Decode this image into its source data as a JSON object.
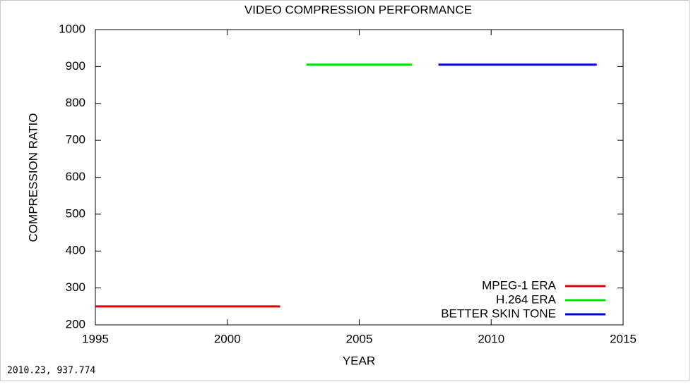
{
  "chart_data": {
    "type": "line",
    "title": "VIDEO COMPRESSION PERFORMANCE",
    "x_label": "YEAR",
    "y_label": "COMPRESSION RATIO",
    "xlim": [
      1995,
      2015
    ],
    "xticks": [
      1995,
      2000,
      2005,
      2010,
      2015
    ],
    "ylim": [
      200,
      1000
    ],
    "yticks": [
      200,
      300,
      400,
      500,
      600,
      700,
      800,
      900,
      1000
    ],
    "legend": "bottom-right",
    "grid": false,
    "series": [
      {
        "name": "MPEG-1 ERA",
        "color": "#e00000",
        "x": [
          1995,
          2002
        ],
        "values": [
          250,
          250
        ]
      },
      {
        "name": "H.264 ERA",
        "color": "#00e000",
        "x": [
          2003,
          2007
        ],
        "values": [
          905,
          905
        ]
      },
      {
        "name": "BETTER SKIN TONE",
        "color": "#0000e0",
        "x": [
          2008,
          2014
        ],
        "values": [
          905,
          905
        ]
      }
    ]
  },
  "status": "2010.23, 937.774"
}
